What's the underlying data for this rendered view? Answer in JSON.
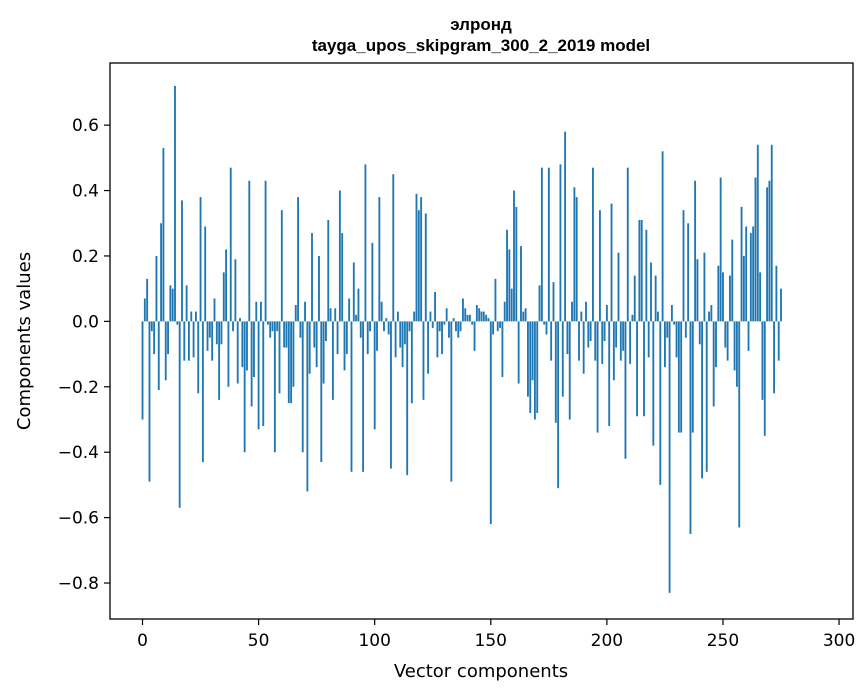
{
  "chart_data": {
    "type": "bar",
    "title": "элронд",
    "subtitle": "tayga_upos_skipgram_300_2_2019 model",
    "xlabel": "Vector components",
    "ylabel": "Components values",
    "xlim": [
      -14,
      306
    ],
    "ylim": [
      -0.91,
      0.79
    ],
    "xticks": [
      0,
      50,
      100,
      150,
      200,
      250,
      300
    ],
    "yticks": [
      -0.8,
      -0.6,
      -0.4,
      -0.2,
      0.0,
      0.2,
      0.4,
      0.6
    ],
    "xtick_labels": [
      "0",
      "50",
      "100",
      "150",
      "200",
      "250",
      "300"
    ],
    "ytick_labels": [
      "−0.8",
      "−0.6",
      "−0.4",
      "−0.2",
      "0.0",
      "0.2",
      "0.4",
      "0.6"
    ],
    "bar_color": "#1f77b4",
    "grid": false,
    "values": [
      -0.3,
      0.07,
      0.13,
      -0.49,
      -0.03,
      -0.1,
      0.2,
      -0.21,
      0.3,
      0.53,
      -0.18,
      -0.1,
      0.11,
      0.1,
      0.72,
      -0.01,
      -0.57,
      0.37,
      -0.12,
      0.11,
      -0.12,
      0.03,
      -0.11,
      0.03,
      -0.22,
      0.38,
      -0.43,
      0.29,
      -0.09,
      -0.05,
      -0.12,
      0.07,
      -0.07,
      -0.24,
      -0.07,
      0.15,
      0.22,
      -0.2,
      0.47,
      -0.03,
      0.19,
      -0.19,
      0.01,
      -0.14,
      -0.4,
      -0.15,
      0.43,
      -0.26,
      -0.17,
      0.06,
      -0.33,
      0.06,
      -0.32,
      0.43,
      -0.01,
      -0.05,
      -0.03,
      -0.4,
      -0.03,
      -0.22,
      0.34,
      -0.08,
      -0.08,
      -0.25,
      -0.25,
      -0.2,
      0.05,
      0.38,
      -0.05,
      -0.4,
      0.06,
      -0.52,
      -0.16,
      0.27,
      -0.08,
      -0.14,
      0.2,
      -0.43,
      -0.19,
      -0.06,
      0.31,
      0.04,
      -0.24,
      0.04,
      -0.1,
      0.4,
      0.27,
      -0.15,
      -0.1,
      0.07,
      -0.46,
      0.18,
      0.02,
      0.1,
      -0.05,
      -0.46,
      0.48,
      -0.1,
      -0.03,
      0.24,
      -0.33,
      -0.09,
      0.38,
      0.06,
      -0.03,
      0.01,
      -0.04,
      -0.45,
      0.45,
      -0.11,
      0.03,
      -0.08,
      -0.14,
      -0.07,
      -0.47,
      -0.03,
      -0.25,
      0.03,
      0.39,
      0.34,
      0.38,
      -0.24,
      0.33,
      -0.16,
      0.03,
      -0.02,
      0.09,
      -0.11,
      -0.03,
      -0.1,
      -0.01,
      0.04,
      -0.05,
      -0.49,
      0.01,
      -0.03,
      -0.05,
      -0.03,
      0.07,
      0.04,
      0.02,
      0.02,
      -0.01,
      -0.09,
      0.05,
      0.04,
      0.03,
      0.03,
      0.02,
      0.01,
      -0.62,
      -0.04,
      0.13,
      -0.03,
      -0.02,
      -0.17,
      0.06,
      0.28,
      0.22,
      0.1,
      0.4,
      0.35,
      -0.19,
      0.23,
      0.03,
      0.04,
      -0.23,
      -0.28,
      -0.18,
      -0.3,
      -0.28,
      0.11,
      0.47,
      -0.01,
      -0.04,
      0.47,
      -0.12,
      0.12,
      -0.31,
      -0.51,
      0.48,
      -0.23,
      0.58,
      -0.1,
      -0.3,
      0.06,
      0.41,
      0.38,
      -0.12,
      0.03,
      -0.16,
      0.06,
      -0.08,
      -0.06,
      0.47,
      -0.12,
      -0.34,
      0.34,
      -0.13,
      -0.06,
      0.05,
      -0.32,
      0.36,
      -0.18,
      -0.08,
      0.21,
      -0.12,
      -0.09,
      -0.42,
      0.47,
      -0.13,
      0.02,
      0.14,
      -0.29,
      0.31,
      0.31,
      -0.29,
      0.28,
      -0.11,
      0.18,
      -0.38,
      0.14,
      0.03,
      -0.5,
      0.52,
      -0.14,
      -0.05,
      -0.83,
      0.05,
      -0.01,
      -0.11,
      -0.34,
      -0.34,
      0.34,
      -0.05,
      0.3,
      -0.65,
      -0.34,
      0.43,
      0.19,
      -0.07,
      -0.48,
      0.21,
      -0.46,
      0.03,
      0.05,
      -0.26,
      -0.14,
      0.17,
      0.44,
      0.15,
      -0.08,
      -0.12,
      0.14,
      0.25,
      -0.15,
      -0.2,
      -0.63,
      0.35,
      0.2,
      0.29,
      -0.09,
      0.27,
      0.29,
      0.44,
      0.54,
      0.15,
      -0.24,
      -0.35,
      0.41,
      0.43,
      0.54,
      -0.22,
      0.17,
      -0.12,
      0.1
    ]
  }
}
